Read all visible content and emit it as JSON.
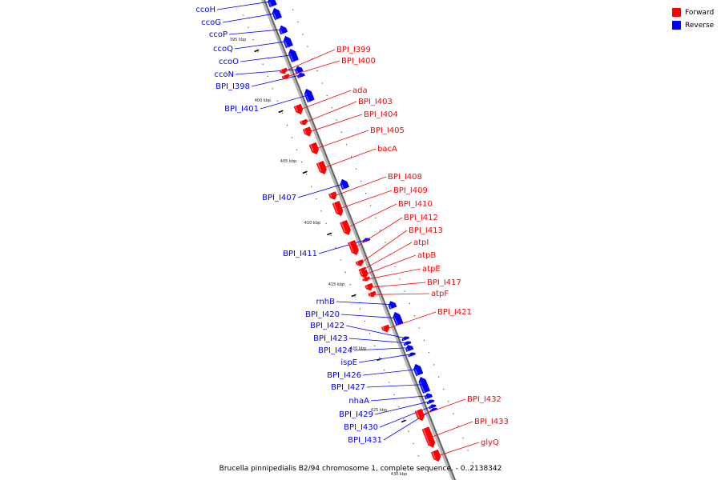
{
  "caption": "Brucella pinnipedialis B2/94 chromosome 1, complete sequence. - 0..2138342",
  "colors": {
    "forward": "#ff0000",
    "reverse": "#0000ff",
    "backbone": "#9a9a9a"
  },
  "legend": [
    {
      "label": "Forward",
      "color": "#ff0000"
    },
    {
      "label": "Reverse",
      "color": "#0000ff"
    }
  ],
  "ticks": [
    "395 kbp",
    "400 kbp",
    "405 kbp",
    "410 kbp",
    "415 kbp",
    "420 kbp",
    "425 kbp",
    "430 kbp"
  ],
  "genes": [
    {
      "name": "ccoH",
      "strand": "reverse"
    },
    {
      "name": "ccoG",
      "strand": "reverse"
    },
    {
      "name": "ccoP",
      "strand": "reverse"
    },
    {
      "name": "ccoQ",
      "strand": "reverse"
    },
    {
      "name": "ccoO",
      "strand": "reverse"
    },
    {
      "name": "ccoN",
      "strand": "reverse"
    },
    {
      "name": "BPI_I398",
      "strand": "reverse"
    },
    {
      "name": "BPI_I399",
      "strand": "forward"
    },
    {
      "name": "BPI_I400",
      "strand": "forward"
    },
    {
      "name": "BPI_I401",
      "strand": "reverse"
    },
    {
      "name": "ada",
      "strand": "forward"
    },
    {
      "name": "BPI_I403",
      "strand": "forward"
    },
    {
      "name": "BPI_I404",
      "strand": "forward"
    },
    {
      "name": "BPI_I405",
      "strand": "forward"
    },
    {
      "name": "bacA",
      "strand": "forward"
    },
    {
      "name": "BPI_I407",
      "strand": "reverse"
    },
    {
      "name": "BPI_I408",
      "strand": "forward"
    },
    {
      "name": "BPI_I409",
      "strand": "forward"
    },
    {
      "name": "BPI_I410",
      "strand": "forward"
    },
    {
      "name": "BPI_I411",
      "strand": "reverse"
    },
    {
      "name": "BPI_I412",
      "strand": "forward"
    },
    {
      "name": "BPI_I413",
      "strand": "forward"
    },
    {
      "name": "atpI",
      "strand": "forward"
    },
    {
      "name": "atpB",
      "strand": "forward"
    },
    {
      "name": "atpE",
      "strand": "forward"
    },
    {
      "name": "BPI_I417",
      "strand": "forward"
    },
    {
      "name": "atpF",
      "strand": "forward"
    },
    {
      "name": "rnhB",
      "strand": "reverse"
    },
    {
      "name": "BPI_I420",
      "strand": "reverse"
    },
    {
      "name": "BPI_I421",
      "strand": "forward"
    },
    {
      "name": "BPI_I422",
      "strand": "reverse"
    },
    {
      "name": "BPI_I423",
      "strand": "reverse"
    },
    {
      "name": "BPI_I424",
      "strand": "reverse"
    },
    {
      "name": "ispE",
      "strand": "reverse"
    },
    {
      "name": "BPI_I426",
      "strand": "reverse"
    },
    {
      "name": "BPI_I427",
      "strand": "reverse"
    },
    {
      "name": "nhaA",
      "strand": "reverse"
    },
    {
      "name": "BPI_I429",
      "strand": "reverse"
    },
    {
      "name": "BPI_I430",
      "strand": "reverse"
    },
    {
      "name": "BPI_I431",
      "strand": "reverse"
    },
    {
      "name": "BPI_I432",
      "strand": "forward"
    },
    {
      "name": "BPI_I433",
      "strand": "forward"
    },
    {
      "name": "glyQ",
      "strand": "forward"
    }
  ]
}
